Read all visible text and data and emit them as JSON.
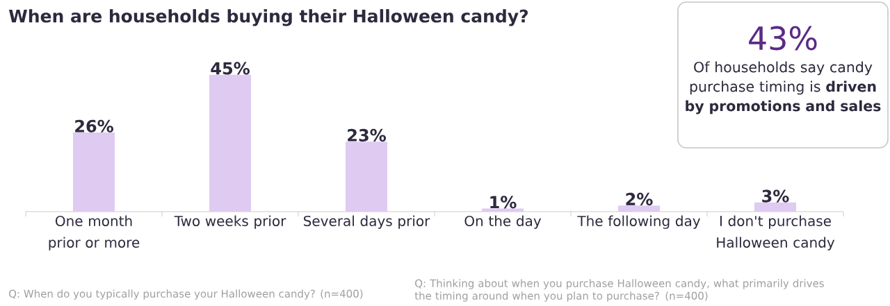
{
  "chart_data": {
    "type": "bar",
    "title": "When are households buying their Halloween candy?",
    "categories": [
      "One month prior or more",
      "Two weeks prior",
      "Several days prior",
      "On the day",
      "The following day",
      "I don't purchase Halloween candy"
    ],
    "values": [
      26,
      45,
      23,
      1,
      2,
      3
    ],
    "value_labels": [
      "26%",
      "45%",
      "23%",
      "1%",
      "2%",
      "3%"
    ],
    "color": "#dfcaf2",
    "annotations": [
      "43%",
      "Of households say candy purchase timing is **driven by promotions and sales**",
      "Q: When do you typically purchase your Halloween candy? (n=400)",
      "Q: Thinking about when you purchase Halloween candy, what primarily drives the timing around when you plan to purchase? (n=400)"
    ]
  }
}
